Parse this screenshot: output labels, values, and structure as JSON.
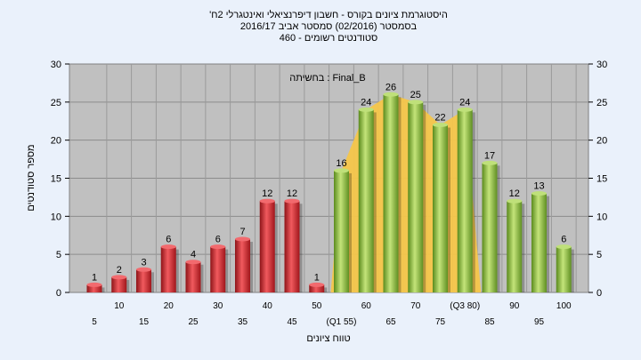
{
  "chart_data": {
    "type": "bar",
    "title_lines": [
      "'היסטוגרמת ציונים בקורס - חשבון דיפרנציאלי ואינטגרלי 2ח",
      "בסמסטר  (02/2016)  סמסטר אביב 2016/17",
      "סטודנטים רשומים - 460"
    ],
    "annotation": "בחשיתה : Final_B",
    "ylabel": "מספר סטודנטים",
    "xlabel": "טווח ציונים",
    "ylim": [
      0,
      30
    ],
    "yticks": [
      0,
      5,
      10,
      15,
      20,
      25,
      30
    ],
    "grid": true,
    "categories": [
      "5",
      "10",
      "15",
      "20",
      "25",
      "30",
      "35",
      "40",
      "45",
      "50",
      "(Q1 55)",
      "60",
      "65",
      "70",
      "75",
      "(Q3 80)",
      "85",
      "90",
      "95",
      "100"
    ],
    "values": [
      1,
      2,
      3,
      6,
      4,
      6,
      7,
      12,
      12,
      1,
      16,
      24,
      26,
      25,
      22,
      24,
      17,
      12,
      13,
      6
    ],
    "bar_colors": [
      "#d8262b",
      "#d8262b",
      "#d8262b",
      "#d8262b",
      "#d8262b",
      "#d8262b",
      "#d8262b",
      "#d8262b",
      "#d8262b",
      "#d8262b",
      "#8bbf3c",
      "#8bbf3c",
      "#8bbf3c",
      "#8bbf3c",
      "#8bbf3c",
      "#8bbf3c",
      "#8bbf3c",
      "#8bbf3c",
      "#8bbf3c",
      "#8bbf3c"
    ],
    "colors": {
      "fail": "#d8262b",
      "pass": "#8bbf3c",
      "iqr_band": "#f6c64a",
      "plot_bg": "#c0c0c0",
      "page_bg": "#eaf1fb"
    }
  }
}
